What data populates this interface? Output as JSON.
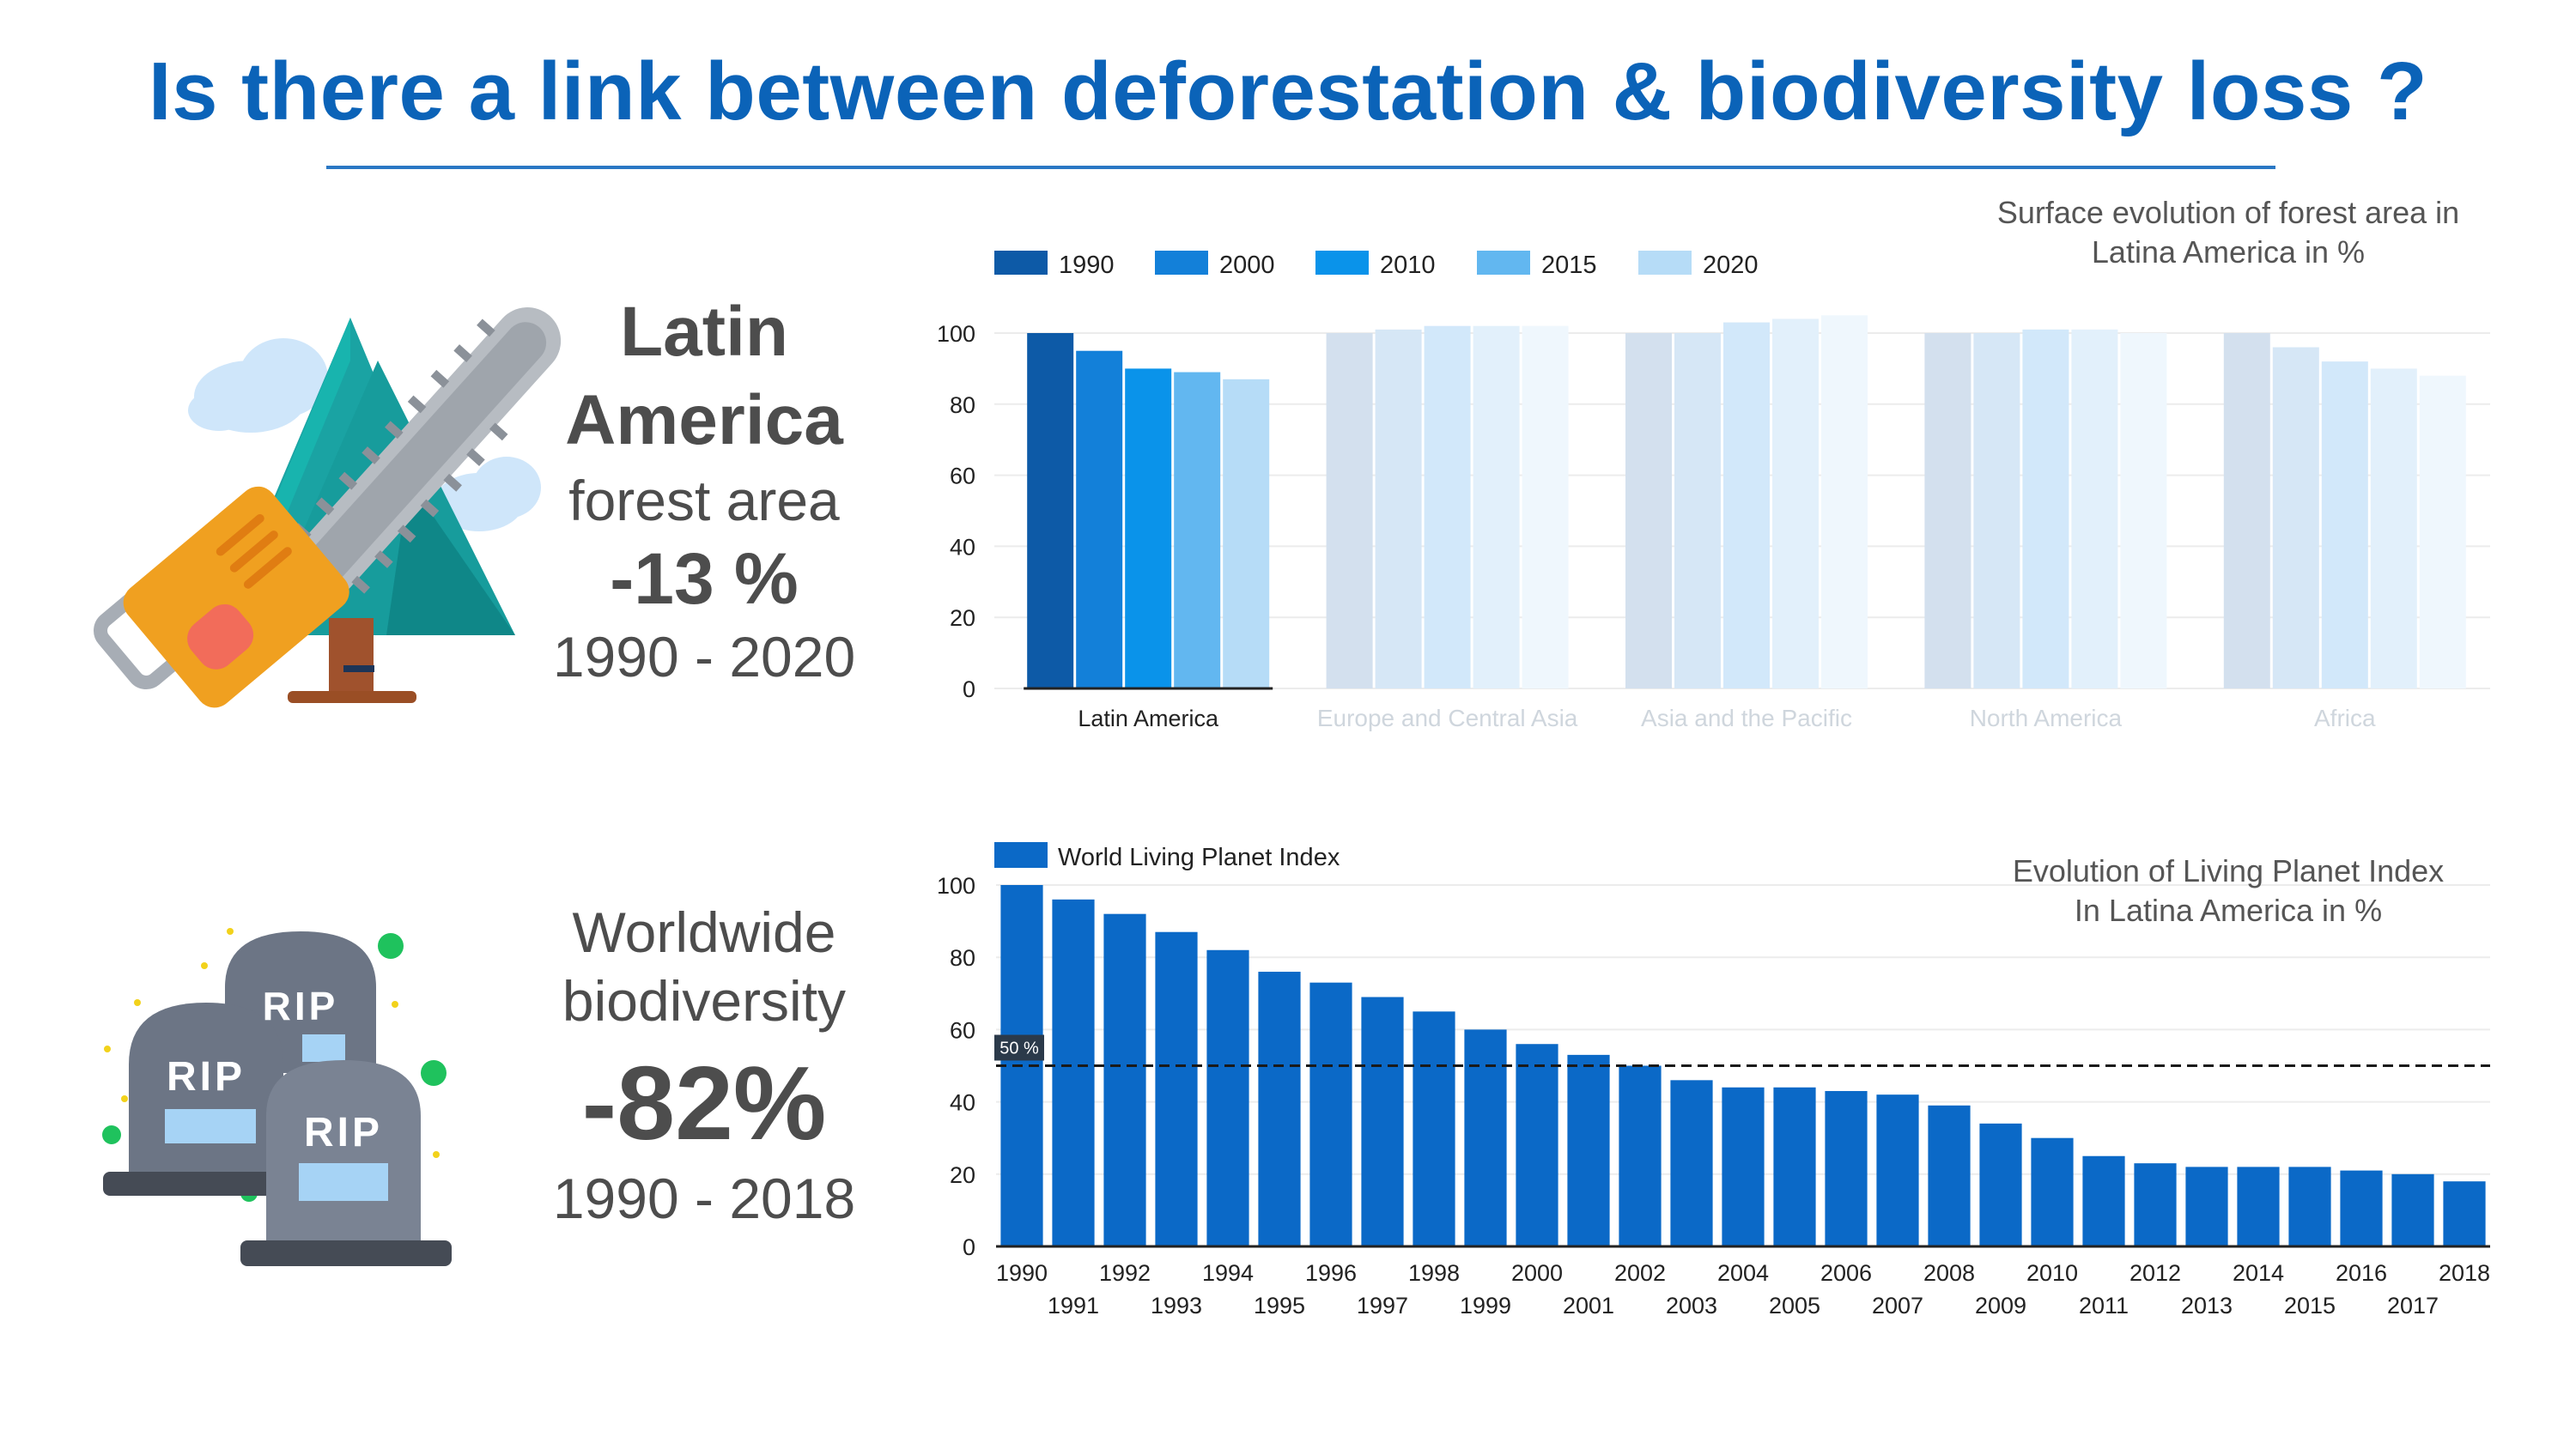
{
  "title": "Is there a link between deforestation & biodiversity loss ?",
  "icons": {
    "top": "chainsaw-tree-icon",
    "bottom": "rip-gravestones-icon",
    "gravestone_text": "RIP"
  },
  "stat1": {
    "line1": "Latin",
    "line2": "America",
    "line3": "forest area",
    "value": "-13 %",
    "period": "1990 - 2020"
  },
  "stat2": {
    "line1": "Worldwide",
    "line2": "biodiversity",
    "value": "-82%",
    "period": "1990 - 2018"
  },
  "chart_data": [
    {
      "type": "bar",
      "caption": [
        "Surface evolution of forest area in",
        "Latina America in %"
      ],
      "categories": [
        "Latin America",
        "Europe and Central Asia",
        "Asia and the Pacific",
        "North America",
        "Africa"
      ],
      "highlighted_category": "Latin America",
      "series": [
        {
          "name": "1990",
          "color": "#0d5aa7",
          "faded": "#d3e0ee",
          "values": [
            100,
            100,
            100,
            100,
            100
          ]
        },
        {
          "name": "2000",
          "color": "#1380d9",
          "faded": "#d6e7f6",
          "values": [
            95,
            101,
            100,
            100,
            96
          ]
        },
        {
          "name": "2010",
          "color": "#0a93ea",
          "faded": "#d2e8fa",
          "values": [
            90,
            102,
            103,
            101,
            92
          ]
        },
        {
          "name": "2015",
          "color": "#62b7f0",
          "faded": "#e2f0fb",
          "values": [
            89,
            102,
            104,
            101,
            90
          ]
        },
        {
          "name": "2020",
          "color": "#b6dcf7",
          "faded": "#eff7fd",
          "values": [
            87,
            102,
            105,
            100,
            88
          ]
        }
      ],
      "y_ticks": [
        0,
        20,
        40,
        60,
        80,
        100
      ],
      "ylim": [
        0,
        100
      ],
      "grid": true,
      "legend_position": "top-left"
    },
    {
      "type": "bar",
      "caption": [
        "Evolution of Living Planet Index",
        "In Latina America in %"
      ],
      "series": [
        {
          "name": "World Living Planet Index",
          "color": "#0b69c7"
        }
      ],
      "x": [
        "1990",
        "1991",
        "1992",
        "1993",
        "1994",
        "1995",
        "1996",
        "1997",
        "1998",
        "1999",
        "2000",
        "2001",
        "2002",
        "2003",
        "2004",
        "2005",
        "2006",
        "2007",
        "2008",
        "2009",
        "2010",
        "2011",
        "2012",
        "2013",
        "2014",
        "2015",
        "2016",
        "2017",
        "2018"
      ],
      "values": [
        100,
        96,
        92,
        87,
        82,
        76,
        73,
        69,
        65,
        60,
        56,
        53,
        50,
        46,
        44,
        44,
        43,
        42,
        39,
        34,
        30,
        25,
        23,
        22,
        22,
        22,
        21,
        20,
        18
      ],
      "y_ticks": [
        0,
        20,
        40,
        60,
        80,
        100
      ],
      "ylim": [
        0,
        100
      ],
      "reference_line": {
        "value": 50,
        "label": "50 %"
      },
      "grid": true,
      "legend_position": "top-left"
    }
  ]
}
